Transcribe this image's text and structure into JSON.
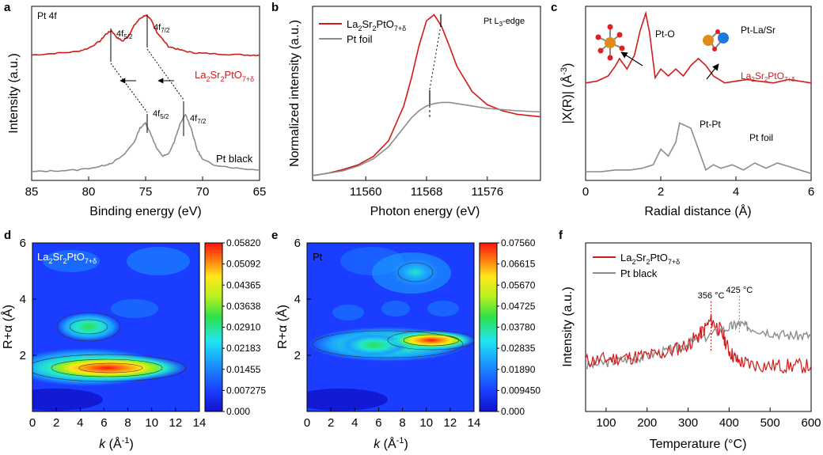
{
  "colors": {
    "red": "#d11a1a",
    "gray": "#8c8c8c",
    "dark_red": "#b30000"
  },
  "chart_data": [
    {
      "id": "a",
      "type": "line",
      "panel_label": "a",
      "title": "Pt 4f",
      "xlabel": "Binding energy (eV)",
      "ylabel": "Intensity (a.u.)",
      "xlim": [
        85,
        65
      ],
      "ylim": [
        0,
        1
      ],
      "x_reversed": true,
      "xticks": [
        "85",
        "80",
        "75",
        "70",
        "65"
      ],
      "series": [
        {
          "name": "La2Sr2PtO7+δ",
          "label_main": "La",
          "sub1": "2",
          "mid1": "Sr",
          "sub2": "2",
          "mid2": "PtO",
          "sub3": "7+δ",
          "color": "#d11a1a",
          "x": [
            85,
            83,
            81,
            80,
            79,
            78.5,
            78,
            77.5,
            77,
            76.5,
            76,
            75.5,
            75,
            74.5,
            74,
            73,
            72,
            71,
            70,
            68,
            66,
            65
          ],
          "y": [
            0.72,
            0.73,
            0.74,
            0.76,
            0.8,
            0.84,
            0.86,
            0.82,
            0.8,
            0.83,
            0.89,
            0.93,
            0.95,
            0.92,
            0.85,
            0.77,
            0.75,
            0.735,
            0.73,
            0.725,
            0.72,
            0.72
          ]
        },
        {
          "name": "Pt black",
          "color": "#8c8c8c",
          "x": [
            85,
            83,
            81,
            79,
            78,
            77,
            76,
            75.5,
            75,
            74.5,
            74,
            73.5,
            73,
            72.5,
            72,
            71.5,
            71,
            70.5,
            70,
            69,
            67,
            65
          ],
          "y": [
            0.05,
            0.055,
            0.06,
            0.08,
            0.1,
            0.14,
            0.22,
            0.3,
            0.33,
            0.26,
            0.18,
            0.14,
            0.15,
            0.22,
            0.32,
            0.38,
            0.3,
            0.18,
            0.12,
            0.09,
            0.07,
            0.06
          ]
        }
      ],
      "peak_labels": [
        {
          "text": "4f",
          "sub": "5/2",
          "x": 78.0
        },
        {
          "text": "4f",
          "sub": "7/2",
          "x": 74.9
        },
        {
          "text": "4f",
          "sub": "5/2",
          "x": 74.9
        },
        {
          "text": "4f",
          "sub": "7/2",
          "x": 71.5
        }
      ]
    },
    {
      "id": "b",
      "type": "line",
      "panel_label": "b",
      "title": "Pt L",
      "title_sub": "3",
      "title_suffix": "-edge",
      "xlabel": "Photon energy (eV)",
      "ylabel": "Normalized intensity (a.u.)",
      "xlim": [
        11553,
        11583
      ],
      "ylim": [
        0,
        1.45
      ],
      "xticks": [
        "11560",
        "11568",
        "11576"
      ],
      "xtick_values": [
        11560,
        11568,
        11576
      ],
      "legend": [
        "La2Sr2PtO7+δ",
        "Pt foil"
      ],
      "series": [
        {
          "name": "La2Sr2PtO7+δ",
          "color": "#d11a1a",
          "x": [
            11553,
            11555,
            11557,
            11559,
            11561,
            11563,
            11565,
            11566,
            11567,
            11568,
            11569,
            11570,
            11571,
            11572,
            11574,
            11576,
            11578,
            11580,
            11583
          ],
          "y": [
            0.04,
            0.06,
            0.09,
            0.13,
            0.2,
            0.33,
            0.62,
            0.85,
            1.12,
            1.33,
            1.38,
            1.28,
            1.12,
            0.95,
            0.74,
            0.63,
            0.58,
            0.55,
            0.53
          ]
        },
        {
          "name": "Pt foil",
          "color": "#8c8c8c",
          "x": [
            11553,
            11555,
            11557,
            11559,
            11561,
            11563,
            11565,
            11566,
            11567,
            11568,
            11569,
            11570,
            11571,
            11572,
            11574,
            11576,
            11578,
            11580,
            11583
          ],
          "y": [
            0.04,
            0.06,
            0.08,
            0.12,
            0.18,
            0.28,
            0.44,
            0.52,
            0.58,
            0.62,
            0.64,
            0.65,
            0.65,
            0.64,
            0.62,
            0.6,
            0.59,
            0.58,
            0.57
          ]
        }
      ]
    },
    {
      "id": "c",
      "type": "line",
      "panel_label": "c",
      "xlabel": "Radial distance (Å)",
      "ylabel": "|X(R)| (Å",
      "ylabel_sup": "-3",
      "ylabel_end": ")",
      "xlim": [
        0,
        6
      ],
      "ylim": [
        0,
        1
      ],
      "xticks": [
        "0",
        "2",
        "4",
        "6"
      ],
      "xtick_values": [
        0,
        2,
        4,
        6
      ],
      "series": [
        {
          "name": "La2Sr2PtO7+δ",
          "color": "#d11a1a",
          "x": [
            0,
            0.3,
            0.6,
            0.8,
            0.9,
            1.1,
            1.3,
            1.45,
            1.6,
            1.7,
            1.85,
            2.0,
            2.2,
            2.4,
            2.6,
            2.8,
            3.0,
            3.2,
            3.4,
            3.7,
            4.0,
            4.3,
            4.6,
            5.0,
            5.4,
            6.0
          ],
          "y": [
            0.56,
            0.57,
            0.6,
            0.66,
            0.7,
            0.64,
            0.72,
            0.86,
            0.96,
            0.85,
            0.59,
            0.64,
            0.6,
            0.64,
            0.6,
            0.66,
            0.7,
            0.66,
            0.6,
            0.56,
            0.57,
            0.58,
            0.57,
            0.56,
            0.58,
            0.56
          ]
        },
        {
          "name": "Pt foil",
          "color": "#8c8c8c",
          "x": [
            0,
            0.4,
            0.8,
            1.2,
            1.5,
            1.8,
            2.0,
            2.2,
            2.4,
            2.5,
            2.6,
            2.8,
            3.0,
            3.2,
            3.4,
            3.6,
            3.9,
            4.2,
            4.5,
            4.8,
            5.1,
            5.4,
            6.0
          ],
          "y": [
            0.05,
            0.05,
            0.06,
            0.06,
            0.07,
            0.09,
            0.18,
            0.14,
            0.22,
            0.33,
            0.32,
            0.3,
            0.18,
            0.06,
            0.09,
            0.07,
            0.09,
            0.06,
            0.1,
            0.07,
            0.1,
            0.08,
            0.04
          ]
        }
      ],
      "labels": [
        "Pt-O",
        "Pt-La/Sr",
        "Pt-Pt",
        "Pt foil",
        "La2Sr2PtO7+δ"
      ]
    },
    {
      "id": "d",
      "type": "heatmap",
      "panel_label": "d",
      "label": "La2Sr2PtO7+δ",
      "xlabel": "k (Å",
      "ylabel": "R+α (Å)",
      "xlim": [
        0,
        14
      ],
      "ylim": [
        0,
        6
      ],
      "xticks": [
        "0",
        "2",
        "4",
        "6",
        "8",
        "10",
        "12",
        "14"
      ],
      "yticks": [
        "2",
        "4",
        "6"
      ],
      "ytick_values": [
        2,
        4,
        6
      ],
      "colorbar": [
        "0.05820",
        "0.05092",
        "0.04365",
        "0.03638",
        "0.02910",
        "0.02183",
        "0.01455",
        "0.007275",
        "0.000"
      ],
      "blobs": [
        {
          "k": 6.5,
          "r": 1.65,
          "intensity": 0.0582
        },
        {
          "k": 4.8,
          "r": 3.05,
          "intensity": 0.031
        }
      ]
    },
    {
      "id": "e",
      "type": "heatmap",
      "panel_label": "e",
      "label": "Pt",
      "xlabel": "k (Å",
      "ylabel": "R+α (Å)",
      "xlim": [
        0,
        14
      ],
      "ylim": [
        0,
        6
      ],
      "xticks": [
        "0",
        "2",
        "4",
        "6",
        "8",
        "10",
        "12",
        "14"
      ],
      "yticks": [
        "2",
        "4",
        "6"
      ],
      "ytick_values": [
        2,
        4,
        6
      ],
      "colorbar": [
        "0.07560",
        "0.06615",
        "0.05670",
        "0.04725",
        "0.03780",
        "0.02835",
        "0.01890",
        "0.009450",
        "0.000"
      ],
      "blobs": [
        {
          "k": 10.2,
          "r": 2.65,
          "intensity": 0.0756
        },
        {
          "k": 6.8,
          "r": 2.6,
          "intensity": 0.034
        },
        {
          "k": 9.6,
          "r": 5.3,
          "intensity": 0.02
        }
      ]
    },
    {
      "id": "f",
      "type": "line",
      "panel_label": "f",
      "xlabel": "Temperature (°C)",
      "ylabel": "Intensity (a.u.)",
      "xlim": [
        50,
        600
      ],
      "ylim": [
        0,
        1
      ],
      "xticks": [
        "100",
        "200",
        "300",
        "400",
        "500",
        "600"
      ],
      "xtick_values": [
        100,
        200,
        300,
        400,
        500,
        600
      ],
      "legend": [
        "La2Sr2PtO7+δ",
        "Pt black"
      ],
      "series": [
        {
          "name": "La2Sr2PtO7+δ",
          "color": "#d11a1a",
          "x": [
            50,
            100,
            150,
            200,
            250,
            300,
            330,
            356,
            380,
            400,
            420,
            450,
            500,
            550,
            600
          ],
          "y": [
            0.3,
            0.31,
            0.32,
            0.33,
            0.35,
            0.4,
            0.46,
            0.54,
            0.48,
            0.36,
            0.3,
            0.28,
            0.27,
            0.27,
            0.27
          ]
        },
        {
          "name": "Pt black",
          "color": "#8c8c8c",
          "x": [
            50,
            100,
            150,
            200,
            250,
            300,
            350,
            400,
            425,
            450,
            500,
            550,
            600
          ],
          "y": [
            0.27,
            0.29,
            0.31,
            0.33,
            0.36,
            0.4,
            0.45,
            0.5,
            0.52,
            0.5,
            0.47,
            0.45,
            0.45
          ]
        }
      ],
      "annotations": [
        {
          "text": "356 °C",
          "x": 356,
          "color": "#d11a1a"
        },
        {
          "text": "425 °C",
          "x": 425,
          "color": "#8c8c8c"
        }
      ]
    }
  ]
}
